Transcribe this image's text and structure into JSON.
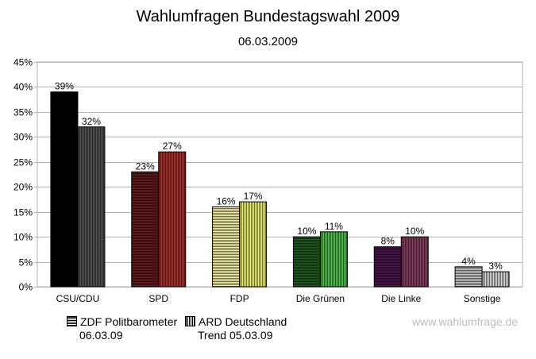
{
  "chart_data": {
    "type": "bar",
    "title": "Wahlumfragen Bundestagswahl 2009",
    "subtitle": "06.03.2009",
    "categories": [
      "CSU/CDU",
      "SPD",
      "FDP",
      "Die Grünen",
      "Die Linke",
      "Sonstige"
    ],
    "series": [
      {
        "name": "ZDF Politbarometer 06.03.09",
        "values": [
          39,
          23,
          16,
          10,
          8,
          4
        ],
        "hatch": "horizontal",
        "colors": [
          "#000000",
          "#7f0f0f",
          "#fff68a",
          "#176317",
          "#5c0a5c",
          "#c8c8c8"
        ]
      },
      {
        "name": "ARD Deutschland Trend 05.03.09",
        "values": [
          32,
          27,
          17,
          11,
          10,
          3
        ],
        "hatch": "vertical",
        "colors": [
          "#555555",
          "#e02020",
          "#ffff33",
          "#33dd33",
          "#aa3366",
          "#dddddd"
        ]
      }
    ],
    "data_labels": [
      [
        "39%",
        "23%",
        "16%",
        "10%",
        "8%",
        "4%"
      ],
      [
        "32%",
        "27%",
        "17%",
        "11%",
        "10%",
        "3%"
      ]
    ],
    "ylim": [
      0,
      45
    ],
    "yticks": [
      "0%",
      "5%",
      "10%",
      "15%",
      "20%",
      "25%",
      "30%",
      "35%",
      "40%",
      "45%"
    ],
    "grid": true,
    "legend": "bottom-left"
  },
  "legend": {
    "item1_line1": "ZDF Politbarometer",
    "item1_line2": "06.03.09",
    "item2_line1": "ARD Deutschland",
    "item2_line2": "Trend 05.03.09"
  },
  "watermark": "www.wahlumfrage.de"
}
